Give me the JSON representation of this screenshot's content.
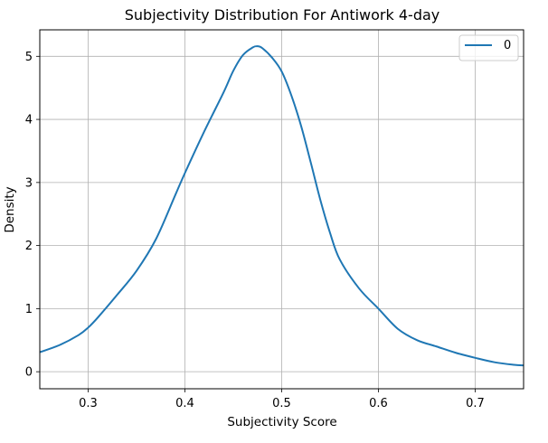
{
  "chart_data": {
    "type": "line",
    "title": "Subjectivity Distribution For Antiwork 4-day",
    "xlabel": "Subjectivity Score",
    "ylabel": "Density",
    "xlim": [
      0.25,
      0.75
    ],
    "ylim": [
      -0.27,
      5.42
    ],
    "x_ticks": [
      0.3,
      0.4,
      0.5,
      0.6,
      0.7
    ],
    "x_tick_labels": [
      "0.3",
      "0.4",
      "0.5",
      "0.6",
      "0.7"
    ],
    "y_ticks": [
      0,
      1,
      2,
      3,
      4,
      5
    ],
    "y_tick_labels": [
      "0",
      "1",
      "2",
      "3",
      "4",
      "5"
    ],
    "grid": true,
    "legend": {
      "position": "top-right",
      "entries": [
        "0"
      ]
    },
    "series": [
      {
        "name": "0",
        "color": "#1f77b4",
        "x": [
          0.25,
          0.27,
          0.29,
          0.3,
          0.31,
          0.33,
          0.35,
          0.37,
          0.39,
          0.4,
          0.42,
          0.44,
          0.45,
          0.46,
          0.47,
          0.475,
          0.48,
          0.49,
          0.5,
          0.51,
          0.52,
          0.53,
          0.54,
          0.55,
          0.56,
          0.58,
          0.6,
          0.62,
          0.64,
          0.66,
          0.68,
          0.7,
          0.72,
          0.74,
          0.75
        ],
        "values": [
          0.31,
          0.42,
          0.58,
          0.7,
          0.86,
          1.22,
          1.6,
          2.1,
          2.8,
          3.15,
          3.81,
          4.43,
          4.77,
          5.02,
          5.14,
          5.16,
          5.13,
          4.98,
          4.76,
          4.38,
          3.9,
          3.32,
          2.72,
          2.2,
          1.78,
          1.32,
          1.0,
          0.68,
          0.5,
          0.4,
          0.3,
          0.22,
          0.15,
          0.11,
          0.1
        ]
      }
    ]
  }
}
